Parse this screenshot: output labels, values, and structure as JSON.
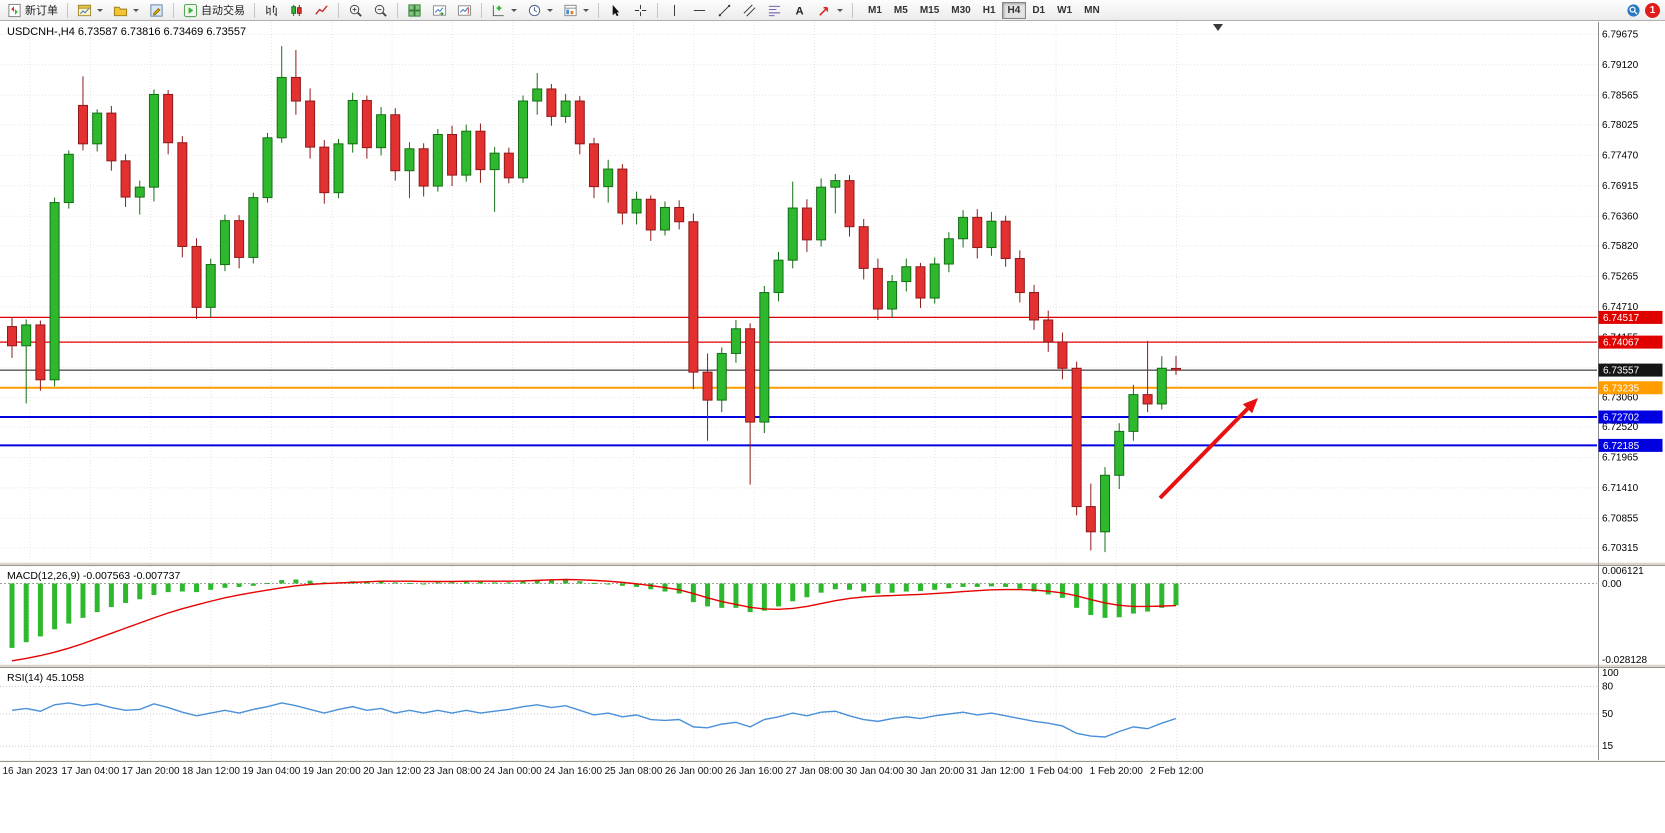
{
  "toolbar": {
    "new_order_label": "新订单",
    "autotrading_label": "自动交易",
    "timeframes": [
      "M1",
      "M5",
      "M15",
      "M30",
      "H1",
      "H4",
      "D1",
      "W1",
      "MN"
    ],
    "active_timeframe": "H4",
    "notification_count": "1"
  },
  "chart_data": {
    "type": "candlestick",
    "symbol": "USDCNH-",
    "timeframe": "H4",
    "title": "USDCNH-,H4 6.73587 6.73816 6.73469 6.73557",
    "current_ohlc": {
      "open": 6.73587,
      "high": 6.73816,
      "low": 6.73469,
      "close": 6.73557
    },
    "ylim": [
      6.7006,
      6.799
    ],
    "grid": "dotted",
    "price_axis_labels": [
      "6.79675",
      "6.79120",
      "6.78565",
      "6.78025",
      "6.77470",
      "6.76915",
      "6.76360",
      "6.75820",
      "6.75265",
      "6.74710",
      "6.74155",
      "6.73600",
      "6.73060",
      "6.72520",
      "6.71965",
      "6.71410",
      "6.70855",
      "6.70315"
    ],
    "time_axis_labels": [
      "16 Jan 2023",
      "17 Jan 04:00",
      "17 Jan 20:00",
      "18 Jan 12:00",
      "19 Jan 04:00",
      "19 Jan 20:00",
      "20 Jan 12:00",
      "23 Jan 08:00",
      "24 Jan 00:00",
      "24 Jan 16:00",
      "25 Jan 08:00",
      "26 Jan 00:00",
      "26 Jan 16:00",
      "27 Jan 08:00",
      "30 Jan 04:00",
      "30 Jan 20:00",
      "31 Jan 12:00",
      "1 Feb 04:00",
      "1 Feb 20:00",
      "2 Feb 12:00"
    ],
    "candles": [
      [
        6.7435,
        6.7452,
        6.7378,
        6.74
      ],
      [
        6.74,
        6.7448,
        6.7295,
        6.7438
      ],
      [
        6.7438,
        6.7446,
        6.7318,
        6.7338
      ],
      [
        6.7338,
        6.767,
        6.7326,
        6.7661
      ],
      [
        6.7661,
        6.7756,
        6.765,
        6.7749
      ],
      [
        6.7838,
        6.7891,
        6.7756,
        6.7768
      ],
      [
        6.7768,
        6.7831,
        6.7754,
        6.7824
      ],
      [
        6.7824,
        6.7837,
        6.7719,
        6.7737
      ],
      [
        6.7737,
        6.7749,
        6.7653,
        6.7671
      ],
      [
        6.7671,
        6.7701,
        6.7639,
        6.7689
      ],
      [
        6.7689,
        6.7867,
        6.7663,
        6.7858
      ],
      [
        6.7858,
        6.7866,
        6.7749,
        6.777
      ],
      [
        6.777,
        6.7782,
        6.7561,
        6.7581
      ],
      [
        6.7581,
        6.7596,
        6.7449,
        6.747
      ],
      [
        6.747,
        6.7559,
        6.7452,
        6.7548
      ],
      [
        6.7548,
        6.7639,
        6.7536,
        6.7628
      ],
      [
        6.7628,
        6.7638,
        6.7541,
        6.7561
      ],
      [
        6.7561,
        6.7679,
        6.755,
        6.767
      ],
      [
        6.767,
        6.7788,
        6.7661,
        6.7779
      ],
      [
        6.7779,
        6.7946,
        6.777,
        6.7889
      ],
      [
        6.7889,
        6.7939,
        6.7821,
        6.7846
      ],
      [
        6.7846,
        6.7869,
        6.7741,
        6.7762
      ],
      [
        6.7762,
        6.7775,
        6.7659,
        6.7679
      ],
      [
        6.7679,
        6.7777,
        6.7669,
        6.7768
      ],
      [
        6.7768,
        6.7861,
        6.7752,
        6.7847
      ],
      [
        6.7847,
        6.7856,
        6.7741,
        6.7761
      ],
      [
        6.7761,
        6.7835,
        6.7747,
        6.7821
      ],
      [
        6.7821,
        6.7833,
        6.7701,
        6.7719
      ],
      [
        6.7719,
        6.7771,
        6.7669,
        6.7759
      ],
      [
        6.7759,
        6.7769,
        6.7672,
        6.7691
      ],
      [
        6.7691,
        6.7795,
        6.7681,
        6.7785
      ],
      [
        6.7785,
        6.7801,
        6.7691,
        6.7711
      ],
      [
        6.7711,
        6.7803,
        6.7699,
        6.7791
      ],
      [
        6.7791,
        6.7805,
        6.7697,
        6.7721
      ],
      [
        6.7721,
        6.7762,
        6.7644,
        6.7751
      ],
      [
        6.7751,
        6.7761,
        6.7696,
        6.7706
      ],
      [
        6.7706,
        6.7856,
        6.7697,
        6.7846
      ],
      [
        6.7846,
        6.7897,
        6.7821,
        6.7868
      ],
      [
        6.7868,
        6.7877,
        6.7801,
        6.7818
      ],
      [
        6.7818,
        6.7859,
        6.7806,
        6.7846
      ],
      [
        6.7846,
        6.7855,
        6.7749,
        6.7768
      ],
      [
        6.7768,
        6.7779,
        6.7669,
        6.769
      ],
      [
        6.769,
        6.7739,
        6.7661,
        6.7722
      ],
      [
        6.7722,
        6.7731,
        6.7621,
        6.7642
      ],
      [
        6.7642,
        6.7681,
        6.7621,
        6.7667
      ],
      [
        6.7667,
        6.7674,
        6.7591,
        6.7611
      ],
      [
        6.7611,
        6.7663,
        6.7601,
        6.7652
      ],
      [
        6.7652,
        6.7665,
        6.7612,
        6.7626
      ],
      [
        6.7626,
        6.7641,
        6.7321,
        6.7352
      ],
      [
        6.7352,
        6.7386,
        6.7227,
        6.7301
      ],
      [
        6.7301,
        6.7397,
        6.7279,
        6.7386
      ],
      [
        6.7386,
        6.7447,
        6.7369,
        6.7431
      ],
      [
        6.7431,
        6.7441,
        6.7147,
        6.7261
      ],
      [
        6.7261,
        6.7509,
        6.7241,
        6.7497
      ],
      [
        6.7497,
        6.7571,
        6.7481,
        6.7556
      ],
      [
        6.7556,
        6.7699,
        6.7541,
        6.7651
      ],
      [
        6.7651,
        6.7667,
        6.7571,
        6.7593
      ],
      [
        6.7593,
        6.7705,
        6.7581,
        6.7689
      ],
      [
        6.7689,
        6.7713,
        6.7641,
        6.7701
      ],
      [
        6.7701,
        6.7711,
        6.7599,
        6.7617
      ],
      [
        6.7617,
        6.7631,
        6.7521,
        6.7541
      ],
      [
        6.7541,
        6.7559,
        6.7447,
        6.7467
      ],
      [
        6.7467,
        6.7529,
        6.7451,
        6.7517
      ],
      [
        6.7517,
        6.7559,
        6.7499,
        6.7544
      ],
      [
        6.7544,
        6.7551,
        6.7469,
        6.7487
      ],
      [
        6.7487,
        6.7561,
        6.7477,
        6.7549
      ],
      [
        6.7549,
        6.7607,
        6.7534,
        6.7595
      ],
      [
        6.7595,
        6.7647,
        6.7579,
        6.7634
      ],
      [
        6.7634,
        6.7649,
        6.7559,
        6.7579
      ],
      [
        6.7579,
        6.7644,
        6.7564,
        6.7627
      ],
      [
        6.7627,
        6.7637,
        6.7544,
        6.7559
      ],
      [
        6.7559,
        6.7574,
        6.7479,
        6.7497
      ],
      [
        6.7497,
        6.7511,
        6.7429,
        6.7447
      ],
      [
        6.7447,
        6.7464,
        6.7389,
        6.7407
      ],
      [
        6.7407,
        6.7424,
        6.7339,
        6.7359
      ],
      [
        6.7359,
        6.7371,
        6.7091,
        6.7107
      ],
      [
        6.7107,
        6.7149,
        6.7027,
        6.7061
      ],
      [
        6.7061,
        6.7179,
        6.7024,
        6.7164
      ],
      [
        6.7164,
        6.7259,
        6.7139,
        6.7244
      ],
      [
        6.7244,
        6.7329,
        6.7227,
        6.7311
      ],
      [
        6.7311,
        6.7409,
        6.7279,
        6.7294
      ],
      [
        6.7294,
        6.7381,
        6.7284,
        6.7359
      ],
      [
        6.73587,
        6.73816,
        6.73469,
        6.73557
      ]
    ],
    "levels": [
      {
        "text": "6.74517",
        "price": 6.74517,
        "color": "#e00000",
        "width": 1.2,
        "kind": "resistance-line"
      },
      {
        "text": "6.74067",
        "price": 6.74067,
        "color": "#e00000",
        "width": 1.2,
        "kind": "resistance-line"
      },
      {
        "text": "6.73557",
        "price": 6.73557,
        "color": "#151515",
        "width": 1,
        "kind": "bid-price-line"
      },
      {
        "text": "6.73235",
        "price": 6.73235,
        "color": "#ff9c00",
        "width": 2,
        "kind": "support-line"
      },
      {
        "text": "6.72702",
        "price": 6.72702,
        "color": "#0000e0",
        "width": 2,
        "kind": "support-line"
      },
      {
        "text": "6.72185",
        "price": 6.72185,
        "color": "#0000e0",
        "width": 2,
        "kind": "support-line"
      }
    ],
    "colors": {
      "up": "#2eb82e",
      "up_border": "#156e15",
      "down": "#e33030",
      "down_border": "#8f1a1a",
      "macd_hist": "#2eb82e",
      "macd_signal": "#e60000",
      "rsi_line": "#4a90d9",
      "grid": "#e4e4e4"
    },
    "indicators": {
      "macd": {
        "label": "MACD(12,26,9) -0.007563 -0.007737",
        "name": "MACD(12,26,9)",
        "value": -0.007563,
        "signal_value": -0.007737,
        "axis_labels": [
          "0.006121",
          "0.00",
          "-0.028128"
        ],
        "scale_max": 0.006121,
        "scale_min": -0.028128,
        "histogram": [
          -0.0225,
          -0.0205,
          -0.0185,
          -0.016,
          -0.014,
          -0.012,
          -0.01,
          -0.0082,
          -0.0068,
          -0.0055,
          -0.004,
          -0.003,
          -0.0028,
          -0.003,
          -0.0022,
          -0.0015,
          -0.0012,
          -0.0008,
          0.0002,
          0.0012,
          0.0014,
          0.001,
          0.0004,
          0.0004,
          0.0008,
          0.0008,
          0.0008,
          0.0004,
          0.0002,
          0.0,
          0.0004,
          0.0004,
          0.0006,
          0.0006,
          0.0004,
          0.0004,
          0.0008,
          0.0012,
          0.0012,
          0.0012,
          0.0008,
          0.0002,
          -0.0002,
          -0.0008,
          -0.0012,
          -0.002,
          -0.0028,
          -0.0035,
          -0.0065,
          -0.008,
          -0.0085,
          -0.0085,
          -0.01,
          -0.0095,
          -0.008,
          -0.0062,
          -0.0048,
          -0.0032,
          -0.002,
          -0.0022,
          -0.0028,
          -0.0035,
          -0.0032,
          -0.0028,
          -0.0026,
          -0.0022,
          -0.0016,
          -0.0012,
          -0.0012,
          -0.001,
          -0.0012,
          -0.0018,
          -0.0028,
          -0.0038,
          -0.005,
          -0.0085,
          -0.011,
          -0.012,
          -0.0118,
          -0.0105,
          -0.0098,
          -0.0085,
          -0.0076
        ],
        "signal_line": [
          -0.027,
          -0.0262,
          -0.0252,
          -0.024,
          -0.0226,
          -0.021,
          -0.0192,
          -0.0174,
          -0.0156,
          -0.0138,
          -0.012,
          -0.0103,
          -0.0088,
          -0.0075,
          -0.0062,
          -0.005,
          -0.004,
          -0.0031,
          -0.0023,
          -0.0015,
          -0.0008,
          -0.0003,
          0.0,
          0.0002,
          0.0004,
          0.0006,
          0.0008,
          0.0008,
          0.0008,
          0.0007,
          0.0007,
          0.0007,
          0.0008,
          0.0008,
          0.0008,
          0.0008,
          0.0009,
          0.0011,
          0.0013,
          0.0014,
          0.0013,
          0.0011,
          0.0008,
          0.0004,
          -0.0001,
          -0.0007,
          -0.0014,
          -0.0022,
          -0.0035,
          -0.005,
          -0.0063,
          -0.0073,
          -0.0083,
          -0.0089,
          -0.009,
          -0.0087,
          -0.008,
          -0.007,
          -0.006,
          -0.0052,
          -0.0047,
          -0.0044,
          -0.0042,
          -0.004,
          -0.0038,
          -0.0035,
          -0.0032,
          -0.0028,
          -0.0025,
          -0.0022,
          -0.0021,
          -0.0021,
          -0.0023,
          -0.0027,
          -0.0033,
          -0.0043,
          -0.0056,
          -0.0068,
          -0.0076,
          -0.008,
          -0.008,
          -0.0079,
          -0.0077
        ]
      },
      "rsi": {
        "label": "RSI(14) 45.1058",
        "name": "RSI(14)",
        "value": 45.1058,
        "axis_labels": [
          "100",
          "80",
          "50",
          "15"
        ],
        "axis_values": [
          100,
          80,
          50,
          15
        ],
        "levels": [
          80,
          50,
          15
        ],
        "values": [
          54,
          56,
          53,
          60,
          62,
          59,
          61,
          57,
          54,
          55,
          61,
          57,
          52,
          48,
          51,
          54,
          51,
          55,
          58,
          62,
          59,
          55,
          51,
          55,
          58,
          54,
          56,
          51,
          54,
          51,
          54,
          51,
          54,
          51,
          53,
          55,
          58,
          60,
          57,
          59,
          54,
          49,
          51,
          47,
          49,
          44,
          43,
          44,
          36,
          35,
          39,
          41,
          36,
          44,
          47,
          51,
          48,
          52,
          53,
          48,
          44,
          42,
          45,
          47,
          45,
          48,
          50,
          52,
          49,
          51,
          48,
          45,
          42,
          40,
          37,
          29,
          26,
          25,
          31,
          36,
          34,
          40,
          45.1
        ]
      }
    },
    "annotation_arrow": {
      "from": [
        1160,
        498
      ],
      "to": [
        1258,
        398
      ],
      "color": "#e81010"
    }
  }
}
